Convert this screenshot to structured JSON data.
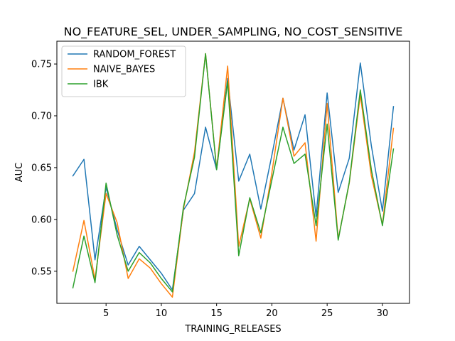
{
  "chart_data": {
    "type": "line",
    "title": "NO_FEATURE_SEL, UNDER_SAMPLING, NO_COST_SENSITIVE",
    "xlabel": "TRAINING_RELEASES",
    "ylabel": "AUC",
    "xlim": [
      0.55,
      32.45
    ],
    "ylim": [
      0.519,
      0.772
    ],
    "xticks": [
      5,
      10,
      15,
      20,
      25,
      30
    ],
    "yticks": [
      0.55,
      0.6,
      0.65,
      0.7,
      0.75
    ],
    "ytick_labels": [
      "0.55",
      "0.60",
      "0.65",
      "0.70",
      "0.75"
    ],
    "grid": false,
    "legend_position": "upper-left",
    "x": [
      2,
      3,
      4,
      5,
      6,
      7,
      8,
      9,
      10,
      11,
      12,
      13,
      14,
      15,
      16,
      17,
      18,
      19,
      20,
      21,
      22,
      23,
      24,
      25,
      26,
      27,
      28,
      29,
      30,
      31
    ],
    "series": [
      {
        "name": "RANDOM_FOREST",
        "color": "#1f77b4",
        "values": [
          0.642,
          0.658,
          0.561,
          0.631,
          0.59,
          0.556,
          0.574,
          0.561,
          0.548,
          0.532,
          0.609,
          0.625,
          0.689,
          0.648,
          0.736,
          0.637,
          0.663,
          0.61,
          0.662,
          0.717,
          0.667,
          0.701,
          0.603,
          0.722,
          0.626,
          0.659,
          0.751,
          0.671,
          0.608,
          0.709
        ]
      },
      {
        "name": "NAIVE_BAYES",
        "color": "#ff7f0e",
        "values": [
          0.55,
          0.599,
          0.542,
          0.625,
          0.597,
          0.543,
          0.562,
          0.553,
          0.538,
          0.525,
          0.61,
          0.665,
          0.76,
          0.649,
          0.748,
          0.574,
          0.62,
          0.582,
          0.645,
          0.717,
          0.661,
          0.674,
          0.579,
          0.712,
          0.581,
          0.635,
          0.72,
          0.642,
          0.595,
          0.688
        ]
      },
      {
        "name": "IBK",
        "color": "#2ca02c",
        "values": [
          0.534,
          0.584,
          0.539,
          0.635,
          0.585,
          0.55,
          0.568,
          0.558,
          0.543,
          0.53,
          0.612,
          0.66,
          0.76,
          0.648,
          0.733,
          0.565,
          0.621,
          0.587,
          0.638,
          0.689,
          0.654,
          0.663,
          0.594,
          0.692,
          0.58,
          0.636,
          0.725,
          0.648,
          0.594,
          0.668
        ]
      }
    ]
  }
}
